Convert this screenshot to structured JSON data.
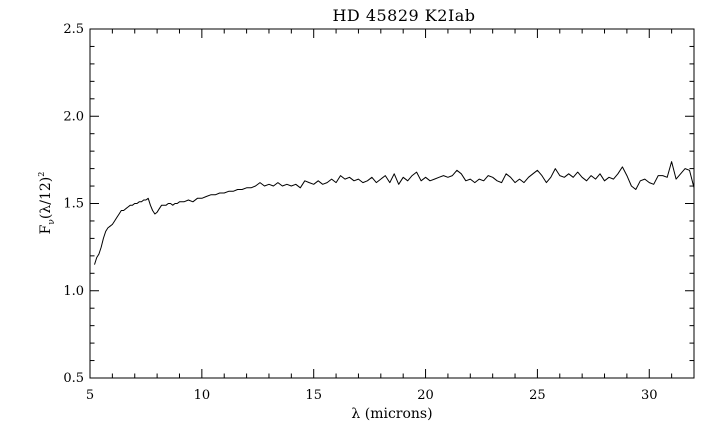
{
  "chart_data": {
    "type": "line",
    "title": "HD 45829 K2Iab",
    "xlabel": "λ (microns)",
    "ylabel": {
      "main": "F",
      "subscript": "ν",
      "mid": "(λ/12)",
      "superscript": "2"
    },
    "xlim": [
      5,
      32
    ],
    "ylim": [
      0.5,
      2.5
    ],
    "xticks": [
      5,
      10,
      15,
      20,
      25,
      30
    ],
    "xtick_labels": [
      "5",
      "10",
      "15",
      "20",
      "25",
      "30"
    ],
    "yticks": [
      0.5,
      1.0,
      1.5,
      2.0,
      2.5
    ],
    "ytick_labels": [
      "0.5",
      "1.0",
      "1.5",
      "2.0",
      "2.5"
    ],
    "x_minor_step": 1,
    "y_minor_step": 0.1,
    "grid": false,
    "series": [
      {
        "x": [
          5.2,
          5.3,
          5.4,
          5.5,
          5.6,
          5.7,
          5.8,
          5.9,
          6.0,
          6.1,
          6.2,
          6.3,
          6.4,
          6.5,
          6.6,
          6.7,
          6.8,
          6.9,
          7.0,
          7.1,
          7.2,
          7.3,
          7.4,
          7.5,
          7.6,
          7.7,
          7.8,
          7.9,
          8.0,
          8.1,
          8.2,
          8.3,
          8.4,
          8.5,
          8.6,
          8.7,
          8.8,
          8.9,
          9.0,
          9.2,
          9.4,
          9.6,
          9.8,
          10.0,
          10.2,
          10.4,
          10.6,
          10.8,
          11.0,
          11.2,
          11.4,
          11.6,
          11.8,
          12.0,
          12.2,
          12.4,
          12.6,
          12.8,
          13.0,
          13.2,
          13.4,
          13.6,
          13.8,
          14.0,
          14.2,
          14.4,
          14.6,
          14.8,
          15.0,
          15.2,
          15.4,
          15.6,
          15.8,
          16.0,
          16.2,
          16.4,
          16.6,
          16.8,
          17.0,
          17.2,
          17.4,
          17.6,
          17.8,
          18.0,
          18.2,
          18.4,
          18.6,
          18.8,
          19.0,
          19.2,
          19.4,
          19.6,
          19.8,
          20.0,
          20.2,
          20.4,
          20.6,
          20.8,
          21.0,
          21.2,
          21.4,
          21.6,
          21.8,
          22.0,
          22.2,
          22.4,
          22.6,
          22.8,
          23.0,
          23.2,
          23.4,
          23.6,
          23.8,
          24.0,
          24.2,
          24.4,
          24.6,
          24.8,
          25.0,
          25.2,
          25.4,
          25.6,
          25.8,
          26.0,
          26.2,
          26.4,
          26.6,
          26.8,
          27.0,
          27.2,
          27.4,
          27.6,
          27.8,
          28.0,
          28.2,
          28.4,
          28.6,
          28.8,
          29.0,
          29.2,
          29.4,
          29.6,
          29.8,
          30.0,
          30.2,
          30.4,
          30.6,
          30.8,
          31.0,
          31.2,
          31.4,
          31.6,
          31.8,
          32.0
        ],
        "y": [
          1.15,
          1.19,
          1.21,
          1.25,
          1.3,
          1.34,
          1.36,
          1.37,
          1.38,
          1.4,
          1.42,
          1.44,
          1.46,
          1.46,
          1.47,
          1.48,
          1.49,
          1.49,
          1.5,
          1.5,
          1.51,
          1.51,
          1.52,
          1.52,
          1.53,
          1.49,
          1.46,
          1.44,
          1.45,
          1.47,
          1.49,
          1.49,
          1.49,
          1.5,
          1.5,
          1.49,
          1.5,
          1.5,
          1.51,
          1.51,
          1.52,
          1.51,
          1.53,
          1.53,
          1.54,
          1.55,
          1.55,
          1.56,
          1.56,
          1.57,
          1.57,
          1.58,
          1.58,
          1.59,
          1.59,
          1.6,
          1.62,
          1.6,
          1.61,
          1.6,
          1.62,
          1.6,
          1.61,
          1.6,
          1.61,
          1.59,
          1.63,
          1.62,
          1.61,
          1.63,
          1.61,
          1.62,
          1.64,
          1.62,
          1.66,
          1.64,
          1.65,
          1.63,
          1.64,
          1.62,
          1.63,
          1.65,
          1.62,
          1.64,
          1.66,
          1.62,
          1.67,
          1.61,
          1.65,
          1.63,
          1.66,
          1.68,
          1.63,
          1.65,
          1.63,
          1.64,
          1.65,
          1.66,
          1.65,
          1.66,
          1.69,
          1.67,
          1.63,
          1.64,
          1.62,
          1.64,
          1.63,
          1.66,
          1.65,
          1.63,
          1.62,
          1.67,
          1.65,
          1.62,
          1.64,
          1.62,
          1.65,
          1.67,
          1.69,
          1.66,
          1.62,
          1.65,
          1.7,
          1.66,
          1.65,
          1.67,
          1.65,
          1.68,
          1.65,
          1.63,
          1.66,
          1.64,
          1.67,
          1.63,
          1.65,
          1.64,
          1.67,
          1.71,
          1.66,
          1.6,
          1.58,
          1.63,
          1.64,
          1.62,
          1.61,
          1.66,
          1.66,
          1.65,
          1.74,
          1.64,
          1.67,
          1.7,
          1.69,
          1.59
        ]
      }
    ]
  }
}
